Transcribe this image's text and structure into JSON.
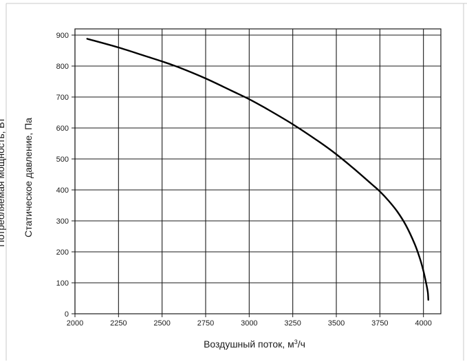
{
  "chart_data": {
    "type": "line",
    "xlabel": "Воздушный поток, м",
    "xlabel_superscript": "3",
    "xlabel_suffix": "/ч",
    "ylabel": "Статическое давление, Па",
    "ylabel_secondary": "Потребляемая мощность, Вт",
    "xlim": [
      2000,
      4100
    ],
    "ylim": [
      0,
      920
    ],
    "x_ticks": [
      "2000",
      "2250",
      "2500",
      "2750",
      "3000",
      "3250",
      "3500",
      "3750",
      "4000"
    ],
    "y_ticks": [
      "0",
      "100",
      "200",
      "300",
      "400",
      "500",
      "600",
      "700",
      "800",
      "900"
    ],
    "grid": true,
    "series": [
      {
        "color": "#000000",
        "x": [
          2070,
          2250,
          2400,
          2500,
          2600,
          2750,
          2900,
          3000,
          3100,
          3250,
          3400,
          3500,
          3600,
          3700,
          3750,
          3800,
          3850,
          3900,
          3950,
          3980,
          4000,
          4015,
          4025,
          4028
        ],
        "y": [
          888,
          860,
          833,
          815,
          795,
          760,
          720,
          693,
          662,
          612,
          556,
          515,
          469,
          420,
          395,
          365,
          330,
          285,
          225,
          178,
          138,
          100,
          70,
          45
        ]
      }
    ]
  }
}
